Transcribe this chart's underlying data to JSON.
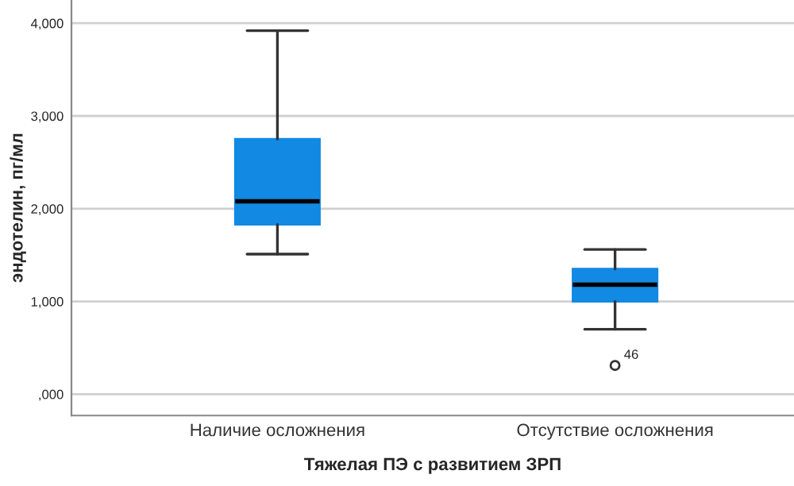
{
  "chart_data": {
    "type": "box",
    "xlabel": "Тяжелая ПЭ с развитием ЗРП",
    "ylabel": "эндотелин, пг/мл",
    "categories": [
      "Наличие осложнения",
      "Отсутствие осложнения"
    ],
    "boxes": [
      {
        "low": 1510,
        "q1": 1830,
        "median": 2080,
        "q3": 2750,
        "high": 3920
      },
      {
        "low": 700,
        "q1": 1000,
        "median": 1180,
        "q3": 1350,
        "high": 1560,
        "outliers": [
          310
        ]
      }
    ],
    "color": "#1289e3",
    "ylim": [
      -230,
      4250
    ],
    "yticks": [
      {
        "value": 0,
        "label": ",000"
      },
      {
        "value": 1000,
        "label": "1,000"
      },
      {
        "value": 2000,
        "label": "2,000"
      },
      {
        "value": 3000,
        "label": "3,000"
      },
      {
        "value": 4000,
        "label": "4,000"
      }
    ],
    "grid": "y",
    "annotations": [
      "46"
    ]
  }
}
